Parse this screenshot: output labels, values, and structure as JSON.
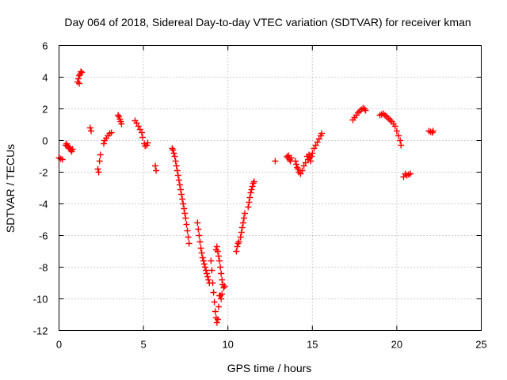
{
  "chart_data": {
    "type": "scatter",
    "title": "Day 064 of 2018, Sidereal Day-to-day VTEC variation (SDTVAR) for receiver kman",
    "xlabel": "GPS time / hours",
    "ylabel": "SDTVAR / TECUs",
    "xlim": [
      0,
      25
    ],
    "ylim": [
      -12,
      6
    ],
    "xticks": [
      "0",
      "5",
      "10",
      "15",
      "20",
      "25"
    ],
    "yticks": [
      "6",
      "4",
      "2",
      "0",
      "-2",
      "-4",
      "-6",
      "-8",
      "-10",
      "-12"
    ],
    "grid": true,
    "marker": "plus",
    "color": "#ff0000",
    "series": [
      {
        "name": "SDTVAR",
        "points": [
          [
            0.0,
            -1.1
          ],
          [
            0.1,
            -1.15
          ],
          [
            0.2,
            -1.2
          ],
          [
            0.4,
            -0.3
          ],
          [
            0.45,
            -0.2
          ],
          [
            0.5,
            -0.35
          ],
          [
            0.55,
            -0.4
          ],
          [
            0.6,
            -0.5
          ],
          [
            0.65,
            -0.45
          ],
          [
            0.7,
            -0.6
          ],
          [
            0.75,
            -0.7
          ],
          [
            0.8,
            -0.55
          ],
          [
            1.1,
            3.7
          ],
          [
            1.15,
            3.9
          ],
          [
            1.2,
            4.1
          ],
          [
            1.25,
            4.2
          ],
          [
            1.3,
            4.35
          ],
          [
            1.35,
            4.3
          ],
          [
            1.2,
            3.6
          ],
          [
            1.85,
            0.8
          ],
          [
            1.9,
            0.6
          ],
          [
            2.3,
            -1.8
          ],
          [
            2.35,
            -2.0
          ],
          [
            2.4,
            -1.3
          ],
          [
            2.45,
            -0.9
          ],
          [
            2.65,
            -0.2
          ],
          [
            2.7,
            0.0
          ],
          [
            2.8,
            0.15
          ],
          [
            2.9,
            0.3
          ],
          [
            3.0,
            0.45
          ],
          [
            3.1,
            0.5
          ],
          [
            3.5,
            1.6
          ],
          [
            3.55,
            1.5
          ],
          [
            3.6,
            1.35
          ],
          [
            3.65,
            1.2
          ],
          [
            3.7,
            1.05
          ],
          [
            4.5,
            1.25
          ],
          [
            4.6,
            1.1
          ],
          [
            4.7,
            0.9
          ],
          [
            4.8,
            0.7
          ],
          [
            4.9,
            0.5
          ],
          [
            4.95,
            0.2
          ],
          [
            5.05,
            -0.2
          ],
          [
            5.1,
            -0.35
          ],
          [
            5.2,
            -0.3
          ],
          [
            5.25,
            -0.15
          ],
          [
            5.7,
            -1.6
          ],
          [
            5.75,
            -1.9
          ],
          [
            6.7,
            -0.5
          ],
          [
            6.75,
            -0.6
          ],
          [
            6.8,
            -0.8
          ],
          [
            6.85,
            -1.0
          ],
          [
            6.9,
            -1.3
          ],
          [
            6.95,
            -1.6
          ],
          [
            7.0,
            -1.9
          ],
          [
            7.05,
            -2.2
          ],
          [
            7.1,
            -2.5
          ],
          [
            7.15,
            -2.8
          ],
          [
            7.2,
            -3.1
          ],
          [
            7.25,
            -3.4
          ],
          [
            7.3,
            -3.7
          ],
          [
            7.35,
            -4.0
          ],
          [
            7.4,
            -4.3
          ],
          [
            7.45,
            -4.6
          ],
          [
            7.5,
            -4.9
          ],
          [
            7.55,
            -5.3
          ],
          [
            7.6,
            -5.7
          ],
          [
            7.65,
            -6.1
          ],
          [
            7.7,
            -6.5
          ],
          [
            8.2,
            -5.2
          ],
          [
            8.25,
            -5.6
          ],
          [
            8.3,
            -6.0
          ],
          [
            8.35,
            -6.4
          ],
          [
            8.4,
            -6.8
          ],
          [
            8.45,
            -7.1
          ],
          [
            8.5,
            -7.4
          ],
          [
            8.55,
            -7.6
          ],
          [
            8.6,
            -7.8
          ],
          [
            8.65,
            -8.0
          ],
          [
            8.7,
            -8.2
          ],
          [
            8.75,
            -8.4
          ],
          [
            8.8,
            -8.6
          ],
          [
            8.85,
            -8.8
          ],
          [
            8.9,
            -9.0
          ],
          [
            9.0,
            -7.6
          ],
          [
            9.05,
            -8.2
          ],
          [
            9.1,
            -9.0
          ],
          [
            9.15,
            -9.6
          ],
          [
            9.2,
            -10.2
          ],
          [
            9.25,
            -10.8
          ],
          [
            9.3,
            -11.2
          ],
          [
            9.35,
            -11.5
          ],
          [
            9.4,
            -11.3
          ],
          [
            9.45,
            -10.5
          ],
          [
            9.5,
            -9.8
          ],
          [
            9.3,
            -6.9
          ],
          [
            9.35,
            -6.7
          ],
          [
            9.4,
            -7.0
          ],
          [
            9.45,
            -7.3
          ],
          [
            9.5,
            -7.6
          ],
          [
            9.55,
            -8.0
          ],
          [
            9.6,
            -8.4
          ],
          [
            9.65,
            -8.8
          ],
          [
            9.7,
            -9.1
          ],
          [
            9.75,
            -9.3
          ],
          [
            9.8,
            -9.2
          ],
          [
            9.55,
            -9.8
          ],
          [
            9.6,
            -10.0
          ],
          [
            9.65,
            -9.7
          ],
          [
            10.5,
            -7.0
          ],
          [
            10.55,
            -6.7
          ],
          [
            10.6,
            -6.5
          ],
          [
            10.65,
            -6.4
          ],
          [
            10.75,
            -6.1
          ],
          [
            10.8,
            -5.8
          ],
          [
            10.85,
            -5.5
          ],
          [
            10.9,
            -5.2
          ],
          [
            10.95,
            -4.9
          ],
          [
            11.0,
            -4.6
          ],
          [
            11.2,
            -4.2
          ],
          [
            11.25,
            -3.9
          ],
          [
            11.3,
            -3.6
          ],
          [
            11.35,
            -3.3
          ],
          [
            11.4,
            -3.1
          ],
          [
            11.45,
            -2.9
          ],
          [
            11.5,
            -2.7
          ],
          [
            11.55,
            -2.6
          ],
          [
            12.8,
            -1.3
          ],
          [
            13.5,
            -1.0
          ],
          [
            13.55,
            -1.1
          ],
          [
            13.6,
            -0.95
          ],
          [
            13.65,
            -1.2
          ],
          [
            13.7,
            -1.3
          ],
          [
            13.75,
            -1.1
          ],
          [
            14.0,
            -1.3
          ],
          [
            14.05,
            -1.5
          ],
          [
            14.1,
            -1.7
          ],
          [
            14.15,
            -1.8
          ],
          [
            14.2,
            -2.0
          ],
          [
            14.3,
            -2.1
          ],
          [
            14.4,
            -1.9
          ],
          [
            14.5,
            -1.6
          ],
          [
            14.6,
            -1.4
          ],
          [
            14.7,
            -1.0
          ],
          [
            14.75,
            -1.2
          ],
          [
            14.8,
            -0.9
          ],
          [
            14.85,
            -1.1
          ],
          [
            14.9,
            -1.3
          ],
          [
            14.95,
            -1.0
          ],
          [
            15.0,
            -0.8
          ],
          [
            15.1,
            -0.5
          ],
          [
            15.2,
            -0.3
          ],
          [
            15.3,
            -0.1
          ],
          [
            15.4,
            0.1
          ],
          [
            15.5,
            0.3
          ],
          [
            15.55,
            0.45
          ],
          [
            17.4,
            1.3
          ],
          [
            17.5,
            1.45
          ],
          [
            17.6,
            1.6
          ],
          [
            17.7,
            1.75
          ],
          [
            17.8,
            1.85
          ],
          [
            17.9,
            1.95
          ],
          [
            18.0,
            2.05
          ],
          [
            18.1,
            2.0
          ],
          [
            18.15,
            1.9
          ],
          [
            19.0,
            1.6
          ],
          [
            19.1,
            1.65
          ],
          [
            19.2,
            1.7
          ],
          [
            19.3,
            1.6
          ],
          [
            19.4,
            1.5
          ],
          [
            19.5,
            1.4
          ],
          [
            19.6,
            1.3
          ],
          [
            19.7,
            1.2
          ],
          [
            19.8,
            1.05
          ],
          [
            19.9,
            0.9
          ],
          [
            20.0,
            0.6
          ],
          [
            20.1,
            0.3
          ],
          [
            20.2,
            0.0
          ],
          [
            20.25,
            -0.3
          ],
          [
            20.4,
            -2.3
          ],
          [
            20.5,
            -2.1
          ],
          [
            20.6,
            -2.2
          ],
          [
            20.7,
            -2.15
          ],
          [
            20.8,
            -2.1
          ],
          [
            21.9,
            0.6
          ],
          [
            22.0,
            0.55
          ],
          [
            22.1,
            0.5
          ],
          [
            22.15,
            0.6
          ]
        ]
      }
    ]
  }
}
